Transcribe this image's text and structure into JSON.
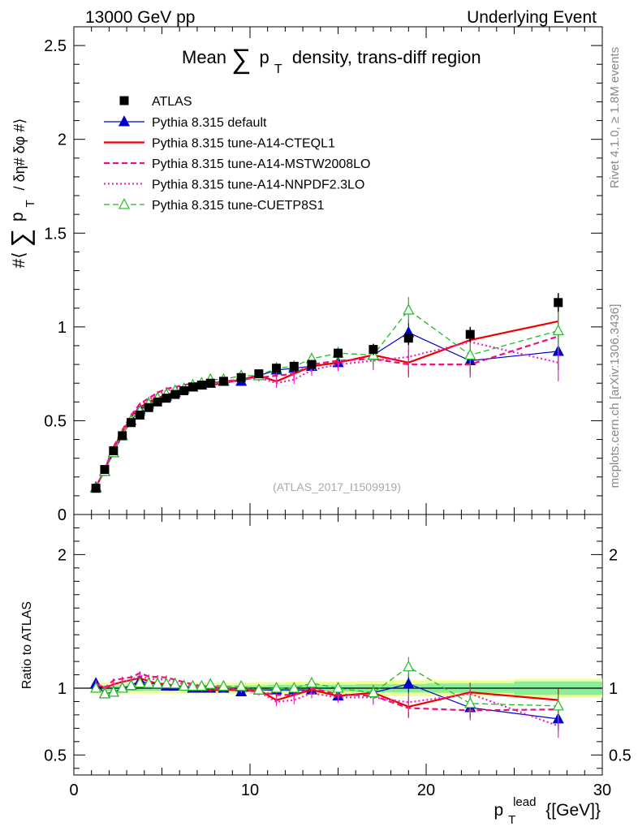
{
  "header": {
    "left": "13000 GeV pp",
    "right": "Underlying Event"
  },
  "side_labels": {
    "top": "Rivet 4.1.0, ≥ 1.8M events",
    "bottom": "mcplots.cern.ch [arXiv:1306.3436]"
  },
  "chart_data": {
    "type": "scatter",
    "title": "Mean ∑ pT density, trans-diff region",
    "title_parts": {
      "pre": "Mean",
      "sym": "∑",
      "p": "p",
      "sub": "T",
      "post": "density, trans-diff region"
    },
    "ylabel_main": "#⟨ ∑ pT / δη# δφ #⟩",
    "ylabel_main_parts": {
      "open": "#⟨",
      "sym": "∑",
      "p": "p",
      "sub": "T",
      "rest": "/ δη# δφ #⟩"
    },
    "ylabel_ratio": "Ratio to ATLAS",
    "xlabel": "pT lead {[GeV]}",
    "xlabel_parts": {
      "p": "p",
      "sub": "T",
      "sup": "lead",
      "unit": "{[GeV]}"
    },
    "analysis_tag": "(ATLAS_2017_I1509919)",
    "xlim": [
      0,
      30
    ],
    "ylim_main": [
      0,
      2.6
    ],
    "ylim_ratio": [
      0.35,
      2.3
    ],
    "x_ticks": [
      0,
      10,
      20,
      30
    ],
    "y_ticks_main": [
      0,
      0.5,
      1,
      1.5,
      2,
      2.5
    ],
    "y_tick_labels_main": [
      "0",
      "0.5",
      "1",
      "1.5",
      "2",
      "2.5"
    ],
    "y_ticks_ratio": [
      0.5,
      1,
      2
    ],
    "y_tick_labels_ratio": [
      "0.5",
      "1",
      "2"
    ],
    "x": [
      1.25,
      1.75,
      2.25,
      2.75,
      3.25,
      3.75,
      4.25,
      4.75,
      5.25,
      5.75,
      6.25,
      6.75,
      7.25,
      7.75,
      8.5,
      9.5,
      10.5,
      11.5,
      12.5,
      13.5,
      15,
      17,
      19,
      22.5,
      27.5
    ],
    "x_bin_edges": [
      1,
      1.5,
      2,
      2.5,
      3,
      3.5,
      4,
      4.5,
      5,
      5.5,
      6,
      6.5,
      7,
      7.5,
      8,
      9,
      10,
      11,
      12,
      13,
      14,
      16,
      18,
      20,
      25,
      30
    ],
    "data": {
      "name": "ATLAS",
      "values": [
        0.14,
        0.24,
        0.34,
        0.42,
        0.49,
        0.53,
        0.57,
        0.6,
        0.62,
        0.64,
        0.66,
        0.68,
        0.69,
        0.7,
        0.71,
        0.73,
        0.75,
        0.78,
        0.79,
        0.8,
        0.86,
        0.88,
        0.94,
        0.96,
        1.13
      ],
      "errors": [
        0.005,
        0.006,
        0.007,
        0.008,
        0.008,
        0.009,
        0.009,
        0.01,
        0.01,
        0.01,
        0.011,
        0.011,
        0.012,
        0.012,
        0.013,
        0.014,
        0.015,
        0.016,
        0.017,
        0.018,
        0.022,
        0.03,
        0.035,
        0.04,
        0.05
      ]
    },
    "series": [
      {
        "name": "Pythia 8.315 default",
        "color": "#0000cc",
        "style": "solid",
        "width": 1.2,
        "marker": "triangle",
        "values": [
          0.145,
          0.23,
          0.33,
          0.42,
          0.5,
          0.56,
          0.59,
          0.62,
          0.63,
          0.65,
          0.67,
          0.68,
          0.69,
          0.7,
          0.71,
          0.71,
          0.74,
          0.77,
          0.78,
          0.79,
          0.81,
          0.85,
          0.97,
          0.82,
          0.87
        ],
        "errors": [
          0.003,
          0.004,
          0.005,
          0.006,
          0.006,
          0.007,
          0.008,
          0.008,
          0.009,
          0.01,
          0.01,
          0.011,
          0.011,
          0.012,
          0.013,
          0.015,
          0.02,
          0.025,
          0.025,
          0.03,
          0.035,
          0.05,
          0.07,
          0.07,
          0.1
        ]
      },
      {
        "name": "Pythia 8.315 tune-A14-CTEQL1",
        "color": "#ee0000",
        "style": "solid",
        "width": 2.2,
        "marker": "none",
        "values": [
          0.145,
          0.24,
          0.35,
          0.44,
          0.52,
          0.57,
          0.6,
          0.62,
          0.64,
          0.65,
          0.66,
          0.67,
          0.68,
          0.69,
          0.7,
          0.72,
          0.74,
          0.71,
          0.75,
          0.79,
          0.81,
          0.85,
          0.81,
          0.93,
          1.03
        ],
        "errors": [
          0.003,
          0.004,
          0.005,
          0.006,
          0.006,
          0.007,
          0.008,
          0.008,
          0.009,
          0.01,
          0.01,
          0.011,
          0.011,
          0.012,
          0.013,
          0.015,
          0.02,
          0.025,
          0.025,
          0.03,
          0.035,
          0.05,
          0.07,
          0.07,
          0.1
        ]
      },
      {
        "name": "Pythia 8.315 tune-A14-MSTW2008LO",
        "color": "#ee1177",
        "style": "dashed",
        "width": 2.2,
        "marker": "none",
        "values": [
          0.145,
          0.24,
          0.36,
          0.45,
          0.53,
          0.59,
          0.62,
          0.65,
          0.67,
          0.68,
          0.69,
          0.7,
          0.7,
          0.71,
          0.71,
          0.72,
          0.73,
          0.74,
          0.75,
          0.8,
          0.82,
          0.83,
          0.8,
          0.8,
          0.95
        ],
        "errors": [
          0.003,
          0.004,
          0.005,
          0.006,
          0.006,
          0.007,
          0.008,
          0.008,
          0.009,
          0.01,
          0.01,
          0.011,
          0.011,
          0.012,
          0.013,
          0.015,
          0.02,
          0.025,
          0.025,
          0.03,
          0.035,
          0.05,
          0.07,
          0.07,
          0.1
        ]
      },
      {
        "name": "Pythia 8.315 tune-A14-NNPDF2.3LO",
        "color": "#ee22cc",
        "style": "dotted",
        "width": 2.2,
        "marker": "none",
        "values": [
          0.145,
          0.24,
          0.35,
          0.44,
          0.52,
          0.58,
          0.61,
          0.64,
          0.66,
          0.67,
          0.68,
          0.69,
          0.7,
          0.7,
          0.71,
          0.72,
          0.73,
          0.7,
          0.72,
          0.77,
          0.8,
          0.82,
          0.84,
          0.92,
          0.81
        ],
        "errors": [
          0.003,
          0.004,
          0.005,
          0.006,
          0.006,
          0.007,
          0.008,
          0.008,
          0.009,
          0.01,
          0.01,
          0.011,
          0.011,
          0.012,
          0.013,
          0.015,
          0.02,
          0.025,
          0.025,
          0.03,
          0.035,
          0.05,
          0.07,
          0.07,
          0.1
        ]
      },
      {
        "name": "Pythia 8.315 tune-CUETP8S1",
        "color": "#22bb22",
        "style": "dashed",
        "width": 1.3,
        "marker": "open-triangle",
        "values": [
          0.14,
          0.23,
          0.33,
          0.42,
          0.5,
          0.55,
          0.59,
          0.62,
          0.64,
          0.66,
          0.67,
          0.69,
          0.7,
          0.72,
          0.72,
          0.74,
          0.74,
          0.78,
          0.79,
          0.83,
          0.86,
          0.85,
          1.09,
          0.85,
          0.98
        ],
        "errors": [
          0.003,
          0.004,
          0.005,
          0.006,
          0.006,
          0.007,
          0.008,
          0.008,
          0.009,
          0.01,
          0.01,
          0.011,
          0.011,
          0.012,
          0.013,
          0.015,
          0.02,
          0.025,
          0.025,
          0.03,
          0.035,
          0.05,
          0.07,
          0.07,
          0.1
        ]
      }
    ],
    "ratio_bands": {
      "stat": [
        0.02,
        0.02,
        0.02,
        0.02,
        0.02,
        0.02,
        0.02,
        0.02,
        0.02,
        0.02,
        0.02,
        0.02,
        0.02,
        0.02,
        0.02,
        0.02,
        0.02,
        0.025,
        0.025,
        0.025,
        0.025,
        0.03,
        0.03,
        0.035,
        0.05
      ],
      "total": [
        0.04,
        0.04,
        0.04,
        0.04,
        0.04,
        0.04,
        0.04,
        0.04,
        0.04,
        0.04,
        0.04,
        0.04,
        0.04,
        0.04,
        0.04,
        0.04,
        0.045,
        0.045,
        0.05,
        0.05,
        0.05,
        0.055,
        0.06,
        0.06,
        0.07
      ]
    },
    "band_colors": {
      "inner": "#88ee99",
      "outer": "#eeff99"
    }
  }
}
